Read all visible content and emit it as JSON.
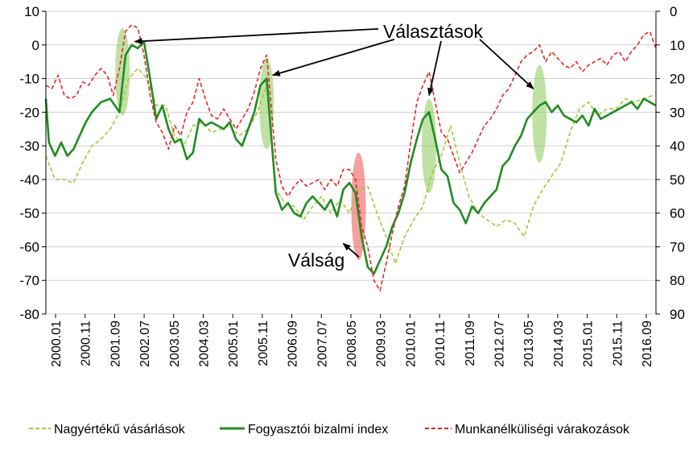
{
  "chart_data": {
    "type": "line",
    "ylim": [
      -80,
      10
    ],
    "y_ticks": [
      "10",
      "0",
      "-10",
      "-20",
      "-30",
      "-40",
      "-50",
      "-60",
      "-70",
      "-80"
    ],
    "y2lim": [
      0,
      90
    ],
    "y2_reversed": true,
    "y2_ticks": [
      "0",
      "10",
      "20",
      "30",
      "40",
      "50",
      "60",
      "70",
      "80",
      "90"
    ],
    "x_tick_labels": [
      "2000.01",
      "2000.11",
      "2001.09",
      "2002.07",
      "2003.05",
      "2004.03",
      "2005.01",
      "2005.11",
      "2006.09",
      "2007.07",
      "2008.05",
      "2009.03",
      "2010.01",
      "2010.11",
      "2011.09",
      "2012.07",
      "2013.05",
      "2014.03",
      "2015.01",
      "2015.11",
      "2016.09"
    ],
    "grid": "horizontal",
    "legend_position": "bottom",
    "colors": {
      "big_purchases": "#9acd32",
      "confidence": "#228b22",
      "unemployment": "#e32626",
      "election_band": "#8cc85a",
      "crisis_band": "#ee5050"
    },
    "series": [
      {
        "name": "Nagyértékű vásárlások",
        "style": "dashed",
        "axis": "left",
        "points": [
          [
            0,
            -33
          ],
          [
            3,
            -40
          ],
          [
            6,
            -40
          ],
          [
            9,
            -41
          ],
          [
            12,
            -35
          ],
          [
            15,
            -30
          ],
          [
            18,
            -28
          ],
          [
            21,
            -25
          ],
          [
            24,
            -20
          ],
          [
            27,
            -10
          ],
          [
            30,
            -7
          ],
          [
            33,
            -10
          ],
          [
            36,
            -18
          ],
          [
            39,
            -18
          ],
          [
            42,
            -27
          ],
          [
            45,
            -30
          ],
          [
            48,
            -24
          ],
          [
            51,
            -23
          ],
          [
            54,
            -26
          ],
          [
            57,
            -25
          ],
          [
            60,
            -24
          ],
          [
            63,
            -27
          ],
          [
            66,
            -25
          ],
          [
            69,
            -20
          ],
          [
            72,
            -12
          ],
          [
            75,
            -43
          ],
          [
            78,
            -47
          ],
          [
            81,
            -48
          ],
          [
            84,
            -52
          ],
          [
            87,
            -48
          ],
          [
            90,
            -45
          ],
          [
            93,
            -50
          ],
          [
            96,
            -46
          ],
          [
            99,
            -50
          ],
          [
            102,
            -43
          ],
          [
            105,
            -42
          ],
          [
            108,
            -50
          ],
          [
            111,
            -57
          ],
          [
            114,
            -65
          ],
          [
            117,
            -57
          ],
          [
            120,
            -52
          ],
          [
            123,
            -48
          ],
          [
            126,
            -38
          ],
          [
            129,
            -33
          ],
          [
            132,
            -24
          ],
          [
            135,
            -35
          ],
          [
            138,
            -45
          ],
          [
            141,
            -50
          ],
          [
            144,
            -52
          ],
          [
            147,
            -54
          ],
          [
            150,
            -52
          ],
          [
            153,
            -53
          ],
          [
            156,
            -57
          ],
          [
            159,
            -48
          ],
          [
            162,
            -43
          ],
          [
            165,
            -39
          ],
          [
            168,
            -35
          ],
          [
            171,
            -26
          ],
          [
            174,
            -19
          ],
          [
            177,
            -17
          ],
          [
            180,
            -21
          ],
          [
            183,
            -19
          ],
          [
            186,
            -19
          ],
          [
            189,
            -16
          ],
          [
            192,
            -17
          ],
          [
            195,
            -16
          ],
          [
            198,
            -15
          ]
        ]
      },
      {
        "name": "Fogyasztói bizalmi index",
        "style": "solid",
        "axis": "left",
        "points": [
          [
            0,
            -16
          ],
          [
            1,
            -29
          ],
          [
            3,
            -33
          ],
          [
            5,
            -29
          ],
          [
            7,
            -33
          ],
          [
            9,
            -31
          ],
          [
            11,
            -27
          ],
          [
            13,
            -23
          ],
          [
            15,
            -20
          ],
          [
            18,
            -17
          ],
          [
            21,
            -16
          ],
          [
            24,
            -20
          ],
          [
            26,
            -3
          ],
          [
            28,
            0
          ],
          [
            30,
            -1
          ],
          [
            32,
            1
          ],
          [
            34,
            -10
          ],
          [
            36,
            -22
          ],
          [
            38,
            -18
          ],
          [
            40,
            -25
          ],
          [
            42,
            -29
          ],
          [
            44,
            -28
          ],
          [
            46,
            -34
          ],
          [
            48,
            -32
          ],
          [
            50,
            -22
          ],
          [
            52,
            -24
          ],
          [
            54,
            -23
          ],
          [
            56,
            -24
          ],
          [
            58,
            -25
          ],
          [
            60,
            -23
          ],
          [
            62,
            -28
          ],
          [
            64,
            -30
          ],
          [
            66,
            -25
          ],
          [
            68,
            -20
          ],
          [
            70,
            -12
          ],
          [
            72,
            -10
          ],
          [
            75,
            -44
          ],
          [
            77,
            -49
          ],
          [
            79,
            -47
          ],
          [
            81,
            -50
          ],
          [
            83,
            -51
          ],
          [
            85,
            -47
          ],
          [
            87,
            -45
          ],
          [
            89,
            -47
          ],
          [
            91,
            -49
          ],
          [
            93,
            -46
          ],
          [
            95,
            -51
          ],
          [
            97,
            -43
          ],
          [
            99,
            -41
          ],
          [
            101,
            -44
          ],
          [
            103,
            -57
          ],
          [
            105,
            -66
          ],
          [
            107,
            -68
          ],
          [
            109,
            -64
          ],
          [
            111,
            -60
          ],
          [
            113,
            -54
          ],
          [
            115,
            -50
          ],
          [
            117,
            -44
          ],
          [
            119,
            -35
          ],
          [
            121,
            -28
          ],
          [
            123,
            -22
          ],
          [
            125,
            -20
          ],
          [
            127,
            -28
          ],
          [
            129,
            -37
          ],
          [
            131,
            -39
          ],
          [
            133,
            -47
          ],
          [
            135,
            -49
          ],
          [
            137,
            -53
          ],
          [
            139,
            -48
          ],
          [
            141,
            -50
          ],
          [
            143,
            -47
          ],
          [
            145,
            -45
          ],
          [
            147,
            -43
          ],
          [
            149,
            -36
          ],
          [
            151,
            -34
          ],
          [
            153,
            -30
          ],
          [
            155,
            -27
          ],
          [
            157,
            -22
          ],
          [
            159,
            -20
          ],
          [
            161,
            -18
          ],
          [
            163,
            -17
          ],
          [
            165,
            -20
          ],
          [
            167,
            -18
          ],
          [
            169,
            -21
          ],
          [
            171,
            -22
          ],
          [
            173,
            -23
          ],
          [
            175,
            -21
          ],
          [
            177,
            -24
          ],
          [
            179,
            -19
          ],
          [
            181,
            -22
          ],
          [
            183,
            -21
          ],
          [
            185,
            -20
          ],
          [
            187,
            -19
          ],
          [
            189,
            -18
          ],
          [
            191,
            -17
          ],
          [
            193,
            -19
          ],
          [
            195,
            -16
          ],
          [
            197,
            -17
          ],
          [
            199,
            -18
          ]
        ]
      },
      {
        "name": "Munkanélküliségi várakozások",
        "style": "dashed",
        "axis": "right",
        "points": [
          [
            0,
            22
          ],
          [
            2,
            23
          ],
          [
            4,
            19
          ],
          [
            6,
            25
          ],
          [
            8,
            26
          ],
          [
            10,
            25
          ],
          [
            12,
            21
          ],
          [
            14,
            22
          ],
          [
            16,
            19
          ],
          [
            18,
            17
          ],
          [
            20,
            19
          ],
          [
            22,
            25
          ],
          [
            24,
            17
          ],
          [
            26,
            6
          ],
          [
            28,
            4
          ],
          [
            30,
            5
          ],
          [
            32,
            13
          ],
          [
            34,
            25
          ],
          [
            36,
            33
          ],
          [
            38,
            36
          ],
          [
            40,
            41
          ],
          [
            42,
            34
          ],
          [
            44,
            37
          ],
          [
            46,
            30
          ],
          [
            48,
            27
          ],
          [
            50,
            20
          ],
          [
            52,
            26
          ],
          [
            54,
            31
          ],
          [
            56,
            32
          ],
          [
            58,
            29
          ],
          [
            60,
            32
          ],
          [
            62,
            35
          ],
          [
            64,
            32
          ],
          [
            66,
            29
          ],
          [
            68,
            24
          ],
          [
            70,
            17
          ],
          [
            72,
            13
          ],
          [
            75,
            44
          ],
          [
            77,
            52
          ],
          [
            79,
            55
          ],
          [
            81,
            52
          ],
          [
            83,
            50
          ],
          [
            85,
            52
          ],
          [
            87,
            51
          ],
          [
            89,
            50
          ],
          [
            91,
            53
          ],
          [
            93,
            50
          ],
          [
            95,
            52
          ],
          [
            97,
            47
          ],
          [
            99,
            47
          ],
          [
            101,
            50
          ],
          [
            103,
            64
          ],
          [
            105,
            70
          ],
          [
            107,
            80
          ],
          [
            109,
            83
          ],
          [
            111,
            75
          ],
          [
            113,
            66
          ],
          [
            115,
            58
          ],
          [
            117,
            52
          ],
          [
            119,
            39
          ],
          [
            121,
            27
          ],
          [
            123,
            22
          ],
          [
            125,
            18
          ],
          [
            127,
            27
          ],
          [
            129,
            36
          ],
          [
            131,
            38
          ],
          [
            133,
            43
          ],
          [
            135,
            48
          ],
          [
            137,
            45
          ],
          [
            139,
            42
          ],
          [
            141,
            38
          ],
          [
            143,
            34
          ],
          [
            145,
            32
          ],
          [
            147,
            29
          ],
          [
            149,
            25
          ],
          [
            151,
            23
          ],
          [
            153,
            19
          ],
          [
            155,
            15
          ],
          [
            157,
            13
          ],
          [
            159,
            12
          ],
          [
            161,
            10
          ],
          [
            163,
            15
          ],
          [
            165,
            12
          ],
          [
            167,
            14
          ],
          [
            169,
            16
          ],
          [
            171,
            17
          ],
          [
            173,
            15
          ],
          [
            175,
            18
          ],
          [
            177,
            16
          ],
          [
            179,
            15
          ],
          [
            181,
            14
          ],
          [
            183,
            16
          ],
          [
            185,
            13
          ],
          [
            187,
            12
          ],
          [
            189,
            15
          ],
          [
            191,
            12
          ],
          [
            193,
            10
          ],
          [
            195,
            7
          ],
          [
            197,
            6
          ],
          [
            199,
            11
          ]
        ]
      }
    ],
    "bands": [
      {
        "kind": "election",
        "x": 25,
        "y_top": 5,
        "y_bottom": -21
      },
      {
        "kind": "election",
        "x": 72,
        "y_top": -4,
        "y_bottom": -31
      },
      {
        "kind": "crisis",
        "x": 102,
        "y_top": -32,
        "y_bottom": -64
      },
      {
        "kind": "election",
        "x": 125,
        "y_top": -16,
        "y_bottom": -44
      },
      {
        "kind": "election",
        "x": 161,
        "y_top": -6,
        "y_bottom": -35
      }
    ],
    "annotations": {
      "elections_label": "Választások",
      "crisis_label": "Válság",
      "election_arrow_targets": [
        [
          29,
          1
        ],
        [
          74,
          -9
        ],
        [
          125,
          -15
        ],
        [
          159,
          -13
        ]
      ],
      "crisis_arrow_target": [
        97,
        -59
      ],
      "elections_label_anchor": [
        110,
        5
      ],
      "crisis_label_anchor": [
        79,
        -64
      ]
    }
  },
  "legend": {
    "big_purchases": "Nagyértékű vásárlások",
    "confidence": "Fogyasztói bizalmi index",
    "unemployment": "Munkanélküliségi várakozások"
  }
}
